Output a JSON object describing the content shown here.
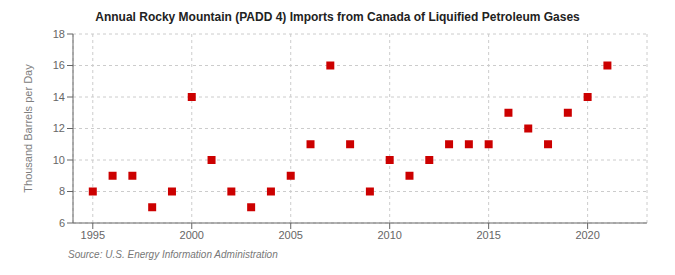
{
  "chart_data": {
    "type": "scatter",
    "title": "Annual Rocky Mountain (PADD 4) Imports from Canada of Liquified Petroleum Gases",
    "ylabel": "Thousand Barrels per Day",
    "annotation": "Source: U.S. Energy Information Administration",
    "x": [
      1995,
      1996,
      1997,
      1998,
      1999,
      2000,
      2001,
      2002,
      2003,
      2004,
      2005,
      2006,
      2007,
      2008,
      2009,
      2010,
      2011,
      2012,
      2013,
      2014,
      2015,
      2016,
      2017,
      2018,
      2019,
      2020,
      2021
    ],
    "values": [
      8,
      9,
      9,
      7,
      8,
      14,
      10,
      8,
      7,
      8,
      9,
      11,
      16,
      11,
      8,
      10,
      9,
      10,
      11,
      11,
      11,
      13,
      12,
      11,
      13,
      14,
      16
    ],
    "color": "#cc0000",
    "marker": "square",
    "xlim": [
      1994.0,
      2023.0
    ],
    "ylim": [
      6,
      18
    ],
    "xticks": [
      1995,
      2000,
      2005,
      2010,
      2015,
      2020
    ],
    "yticks": [
      6,
      8,
      10,
      12,
      14,
      16,
      18
    ],
    "grid": true
  }
}
